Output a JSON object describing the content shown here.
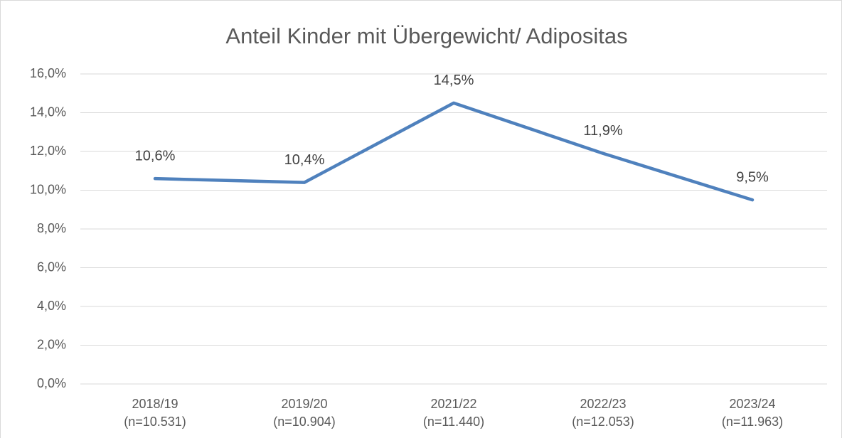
{
  "chart_data": {
    "type": "line",
    "title": "Anteil Kinder mit Übergewicht/ Adipositas",
    "categories": [
      [
        "2018/19",
        "(n=10.531)"
      ],
      [
        "2019/20",
        "(n=10.904)"
      ],
      [
        "2021/22",
        "(n=11.440)"
      ],
      [
        "2022/23",
        "(n=12.053)"
      ],
      [
        "2023/24",
        "(n=11.963)"
      ]
    ],
    "values": [
      10.6,
      10.4,
      14.5,
      11.9,
      9.5
    ],
    "value_labels": [
      "10,6%",
      "10,4%",
      "14,5%",
      "11,9%",
      "9,5%"
    ],
    "color": "#4f81bd",
    "ylim": [
      0,
      16
    ],
    "yticks": [
      {
        "value": 0,
        "label": "0,0%"
      },
      {
        "value": 2,
        "label": "2,0%"
      },
      {
        "value": 4,
        "label": "4,0%"
      },
      {
        "value": 6,
        "label": "6,0%"
      },
      {
        "value": 8,
        "label": "8,0%"
      },
      {
        "value": 10,
        "label": "10,0%"
      },
      {
        "value": 12,
        "label": "12,0%"
      },
      {
        "value": 14,
        "label": "14,0%"
      },
      {
        "value": 16,
        "label": "16,0%"
      }
    ],
    "grid": true
  }
}
